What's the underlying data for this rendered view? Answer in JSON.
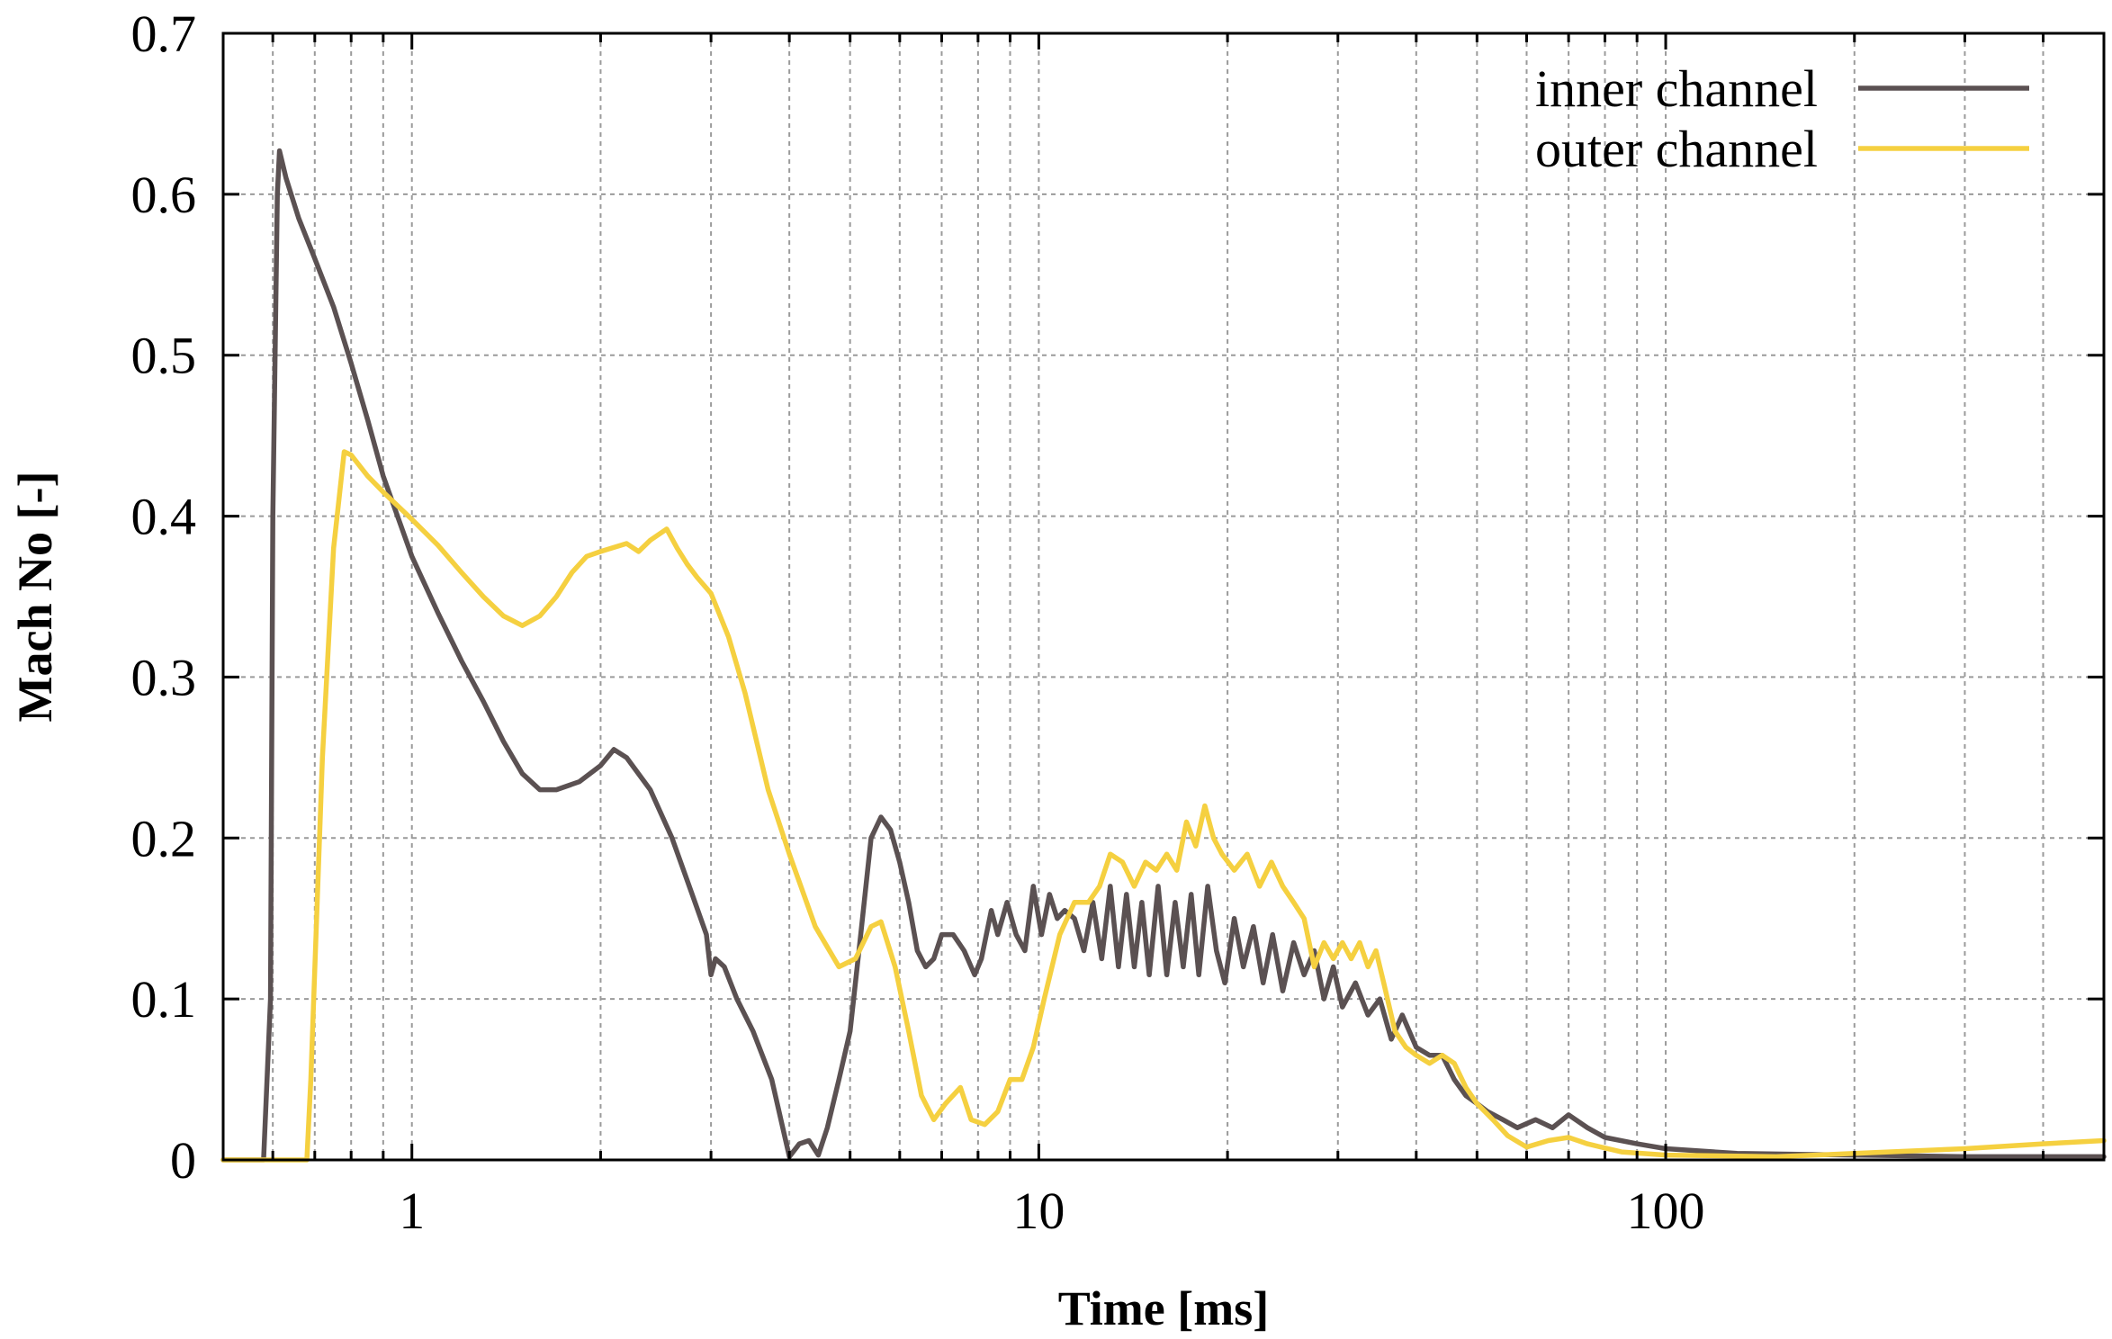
{
  "chart_data": {
    "type": "line",
    "title": "",
    "xlabel": "Time [ms]",
    "ylabel": "Mach No [-]",
    "xscale": "log",
    "xlim": [
      0.5,
      500
    ],
    "ylim": [
      0,
      0.7
    ],
    "grid": true,
    "legend_position": "top-right",
    "x_tick_labels": [
      "1",
      "10",
      "100"
    ],
    "x_ticks": [
      1,
      10,
      100
    ],
    "y_tick_labels": [
      "0",
      "0.1",
      "0.2",
      "0.3",
      "0.4",
      "0.5",
      "0.6",
      "0.7"
    ],
    "y_ticks": [
      0,
      0.1,
      0.2,
      0.3,
      0.4,
      0.5,
      0.6,
      0.7
    ],
    "series": [
      {
        "name": "inner channel",
        "color": "#5b5152",
        "points": [
          [
            0.5,
            0.0
          ],
          [
            0.58,
            0.0
          ],
          [
            0.595,
            0.1
          ],
          [
            0.6,
            0.4
          ],
          [
            0.61,
            0.6
          ],
          [
            0.615,
            0.627
          ],
          [
            0.63,
            0.61
          ],
          [
            0.66,
            0.585
          ],
          [
            0.7,
            0.56
          ],
          [
            0.75,
            0.53
          ],
          [
            0.8,
            0.495
          ],
          [
            0.85,
            0.46
          ],
          [
            0.9,
            0.425
          ],
          [
            1.0,
            0.375
          ],
          [
            1.1,
            0.34
          ],
          [
            1.2,
            0.31
          ],
          [
            1.3,
            0.285
          ],
          [
            1.4,
            0.26
          ],
          [
            1.5,
            0.24
          ],
          [
            1.6,
            0.23
          ],
          [
            1.7,
            0.23
          ],
          [
            1.85,
            0.235
          ],
          [
            2.0,
            0.245
          ],
          [
            2.1,
            0.255
          ],
          [
            2.2,
            0.25
          ],
          [
            2.4,
            0.23
          ],
          [
            2.6,
            0.2
          ],
          [
            2.8,
            0.165
          ],
          [
            2.95,
            0.14
          ],
          [
            3.0,
            0.115
          ],
          [
            3.05,
            0.125
          ],
          [
            3.15,
            0.12
          ],
          [
            3.3,
            0.1
          ],
          [
            3.5,
            0.08
          ],
          [
            3.75,
            0.05
          ],
          [
            4.0,
            0.002
          ],
          [
            4.15,
            0.01
          ],
          [
            4.3,
            0.012
          ],
          [
            4.45,
            0.003
          ],
          [
            4.6,
            0.02
          ],
          [
            4.8,
            0.05
          ],
          [
            5.0,
            0.08
          ],
          [
            5.2,
            0.14
          ],
          [
            5.4,
            0.2
          ],
          [
            5.6,
            0.213
          ],
          [
            5.8,
            0.205
          ],
          [
            6.0,
            0.185
          ],
          [
            6.2,
            0.16
          ],
          [
            6.4,
            0.13
          ],
          [
            6.6,
            0.12
          ],
          [
            6.8,
            0.125
          ],
          [
            7.0,
            0.14
          ],
          [
            7.3,
            0.14
          ],
          [
            7.6,
            0.13
          ],
          [
            7.9,
            0.115
          ],
          [
            8.1,
            0.125
          ],
          [
            8.4,
            0.155
          ],
          [
            8.6,
            0.14
          ],
          [
            8.9,
            0.16
          ],
          [
            9.2,
            0.14
          ],
          [
            9.5,
            0.13
          ],
          [
            9.8,
            0.17
          ],
          [
            10.1,
            0.14
          ],
          [
            10.4,
            0.165
          ],
          [
            10.7,
            0.15
          ],
          [
            11.0,
            0.155
          ],
          [
            11.4,
            0.15
          ],
          [
            11.8,
            0.13
          ],
          [
            12.2,
            0.16
          ],
          [
            12.6,
            0.125
          ],
          [
            13.0,
            0.17
          ],
          [
            13.4,
            0.12
          ],
          [
            13.8,
            0.165
          ],
          [
            14.2,
            0.12
          ],
          [
            14.6,
            0.16
          ],
          [
            15.0,
            0.115
          ],
          [
            15.5,
            0.17
          ],
          [
            16.0,
            0.115
          ],
          [
            16.5,
            0.16
          ],
          [
            17.0,
            0.12
          ],
          [
            17.5,
            0.165
          ],
          [
            18.0,
            0.115
          ],
          [
            18.6,
            0.17
          ],
          [
            19.2,
            0.13
          ],
          [
            19.8,
            0.11
          ],
          [
            20.5,
            0.15
          ],
          [
            21.2,
            0.12
          ],
          [
            22.0,
            0.145
          ],
          [
            22.8,
            0.11
          ],
          [
            23.6,
            0.14
          ],
          [
            24.5,
            0.105
          ],
          [
            25.5,
            0.135
          ],
          [
            26.5,
            0.115
          ],
          [
            27.5,
            0.13
          ],
          [
            28.5,
            0.1
          ],
          [
            29.5,
            0.12
          ],
          [
            30.5,
            0.095
          ],
          [
            32.0,
            0.11
          ],
          [
            33.5,
            0.09
          ],
          [
            35.0,
            0.1
          ],
          [
            36.5,
            0.075
          ],
          [
            38.0,
            0.09
          ],
          [
            40.0,
            0.07
          ],
          [
            42.0,
            0.065
          ],
          [
            44.0,
            0.065
          ],
          [
            46.0,
            0.05
          ],
          [
            48.0,
            0.04
          ],
          [
            50.0,
            0.035
          ],
          [
            52.0,
            0.03
          ],
          [
            55.0,
            0.025
          ],
          [
            58.0,
            0.02
          ],
          [
            62.0,
            0.025
          ],
          [
            66.0,
            0.02
          ],
          [
            70.0,
            0.028
          ],
          [
            75.0,
            0.02
          ],
          [
            80.0,
            0.014
          ],
          [
            90.0,
            0.01
          ],
          [
            100.0,
            0.007
          ],
          [
            130.0,
            0.004
          ],
          [
            200.0,
            0.003
          ],
          [
            300.0,
            0.002
          ],
          [
            500.0,
            0.002
          ]
        ]
      },
      {
        "name": "outer channel",
        "color": "#f5d040",
        "points": [
          [
            0.5,
            0.0
          ],
          [
            0.68,
            0.0
          ],
          [
            0.69,
            0.05
          ],
          [
            0.72,
            0.25
          ],
          [
            0.75,
            0.38
          ],
          [
            0.78,
            0.44
          ],
          [
            0.8,
            0.438
          ],
          [
            0.85,
            0.425
          ],
          [
            0.9,
            0.415
          ],
          [
            1.0,
            0.398
          ],
          [
            1.1,
            0.382
          ],
          [
            1.2,
            0.365
          ],
          [
            1.3,
            0.35
          ],
          [
            1.4,
            0.338
          ],
          [
            1.5,
            0.332
          ],
          [
            1.6,
            0.338
          ],
          [
            1.7,
            0.35
          ],
          [
            1.8,
            0.365
          ],
          [
            1.9,
            0.375
          ],
          [
            2.0,
            0.378
          ],
          [
            2.2,
            0.383
          ],
          [
            2.3,
            0.378
          ],
          [
            2.4,
            0.385
          ],
          [
            2.55,
            0.392
          ],
          [
            2.65,
            0.38
          ],
          [
            2.75,
            0.37
          ],
          [
            2.85,
            0.362
          ],
          [
            3.0,
            0.352
          ],
          [
            3.2,
            0.325
          ],
          [
            3.4,
            0.29
          ],
          [
            3.7,
            0.23
          ],
          [
            4.0,
            0.19
          ],
          [
            4.4,
            0.145
          ],
          [
            4.8,
            0.12
          ],
          [
            5.1,
            0.125
          ],
          [
            5.4,
            0.145
          ],
          [
            5.6,
            0.148
          ],
          [
            5.9,
            0.12
          ],
          [
            6.2,
            0.08
          ],
          [
            6.5,
            0.04
          ],
          [
            6.8,
            0.025
          ],
          [
            7.1,
            0.035
          ],
          [
            7.5,
            0.045
          ],
          [
            7.8,
            0.025
          ],
          [
            8.2,
            0.022
          ],
          [
            8.6,
            0.03
          ],
          [
            9.0,
            0.05
          ],
          [
            9.4,
            0.05
          ],
          [
            9.8,
            0.07
          ],
          [
            10.2,
            0.1
          ],
          [
            10.8,
            0.14
          ],
          [
            11.4,
            0.16
          ],
          [
            12.0,
            0.16
          ],
          [
            12.5,
            0.17
          ],
          [
            13.0,
            0.19
          ],
          [
            13.6,
            0.185
          ],
          [
            14.2,
            0.17
          ],
          [
            14.8,
            0.185
          ],
          [
            15.4,
            0.18
          ],
          [
            16.0,
            0.19
          ],
          [
            16.6,
            0.18
          ],
          [
            17.2,
            0.21
          ],
          [
            17.8,
            0.195
          ],
          [
            18.4,
            0.22
          ],
          [
            19.0,
            0.2
          ],
          [
            19.6,
            0.19
          ],
          [
            20.5,
            0.18
          ],
          [
            21.5,
            0.19
          ],
          [
            22.5,
            0.17
          ],
          [
            23.5,
            0.185
          ],
          [
            24.5,
            0.17
          ],
          [
            25.5,
            0.16
          ],
          [
            26.5,
            0.15
          ],
          [
            27.5,
            0.12
          ],
          [
            28.5,
            0.135
          ],
          [
            29.5,
            0.125
          ],
          [
            30.5,
            0.135
          ],
          [
            31.5,
            0.125
          ],
          [
            32.5,
            0.135
          ],
          [
            33.5,
            0.12
          ],
          [
            34.5,
            0.13
          ],
          [
            35.5,
            0.11
          ],
          [
            37.0,
            0.08
          ],
          [
            38.5,
            0.07
          ],
          [
            40.0,
            0.065
          ],
          [
            42.0,
            0.06
          ],
          [
            44.0,
            0.065
          ],
          [
            46.0,
            0.06
          ],
          [
            48.0,
            0.045
          ],
          [
            50.0,
            0.035
          ],
          [
            53.0,
            0.025
          ],
          [
            56.0,
            0.015
          ],
          [
            60.0,
            0.008
          ],
          [
            65.0,
            0.012
          ],
          [
            70.0,
            0.014
          ],
          [
            75.0,
            0.01
          ],
          [
            85.0,
            0.005
          ],
          [
            100.0,
            0.003
          ],
          [
            150.0,
            0.002
          ],
          [
            200.0,
            0.004
          ],
          [
            300.0,
            0.007
          ],
          [
            400.0,
            0.01
          ],
          [
            500.0,
            0.012
          ]
        ]
      }
    ]
  }
}
